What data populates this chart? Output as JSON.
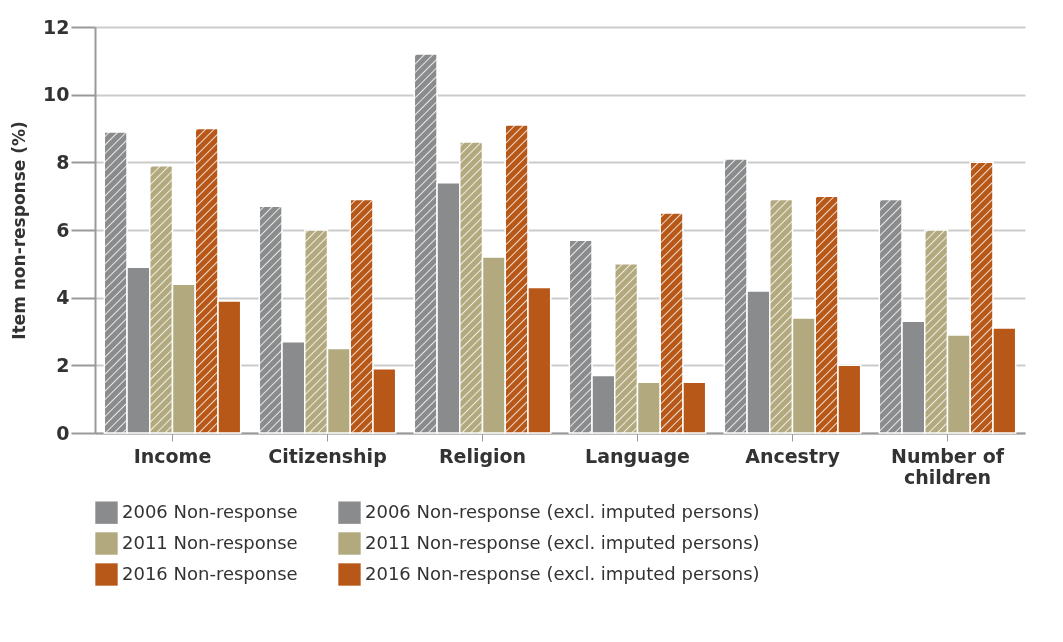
{
  "chart_data": {
    "type": "bar",
    "ylabel": "Item non-response (%)",
    "categories": [
      "Income",
      "Citizenship",
      "Religion",
      "Language",
      "Ancestry",
      "Number of children"
    ],
    "series": [
      {
        "name": "2006 Non-response",
        "color": "#8a8b8d",
        "values": [
          8.9,
          6.7,
          11.2,
          5.7,
          8.1,
          6.9
        ]
      },
      {
        "name": "2006 Non-response (excl. imputed persons)",
        "color": "#8a8b8d",
        "values": [
          4.9,
          2.7,
          7.4,
          1.7,
          4.2,
          3.3
        ]
      },
      {
        "name": "2011 Non-response",
        "color": "#b2a97e",
        "values": [
          7.9,
          6.0,
          8.6,
          5.0,
          6.9,
          6.0
        ]
      },
      {
        "name": "2011 Non-response (excl. imputed persons)",
        "color": "#b2a97e",
        "values": [
          4.4,
          2.5,
          5.2,
          1.5,
          3.4,
          2.9
        ]
      },
      {
        "name": "2016 Non-response",
        "color": "#b85818",
        "values": [
          9.0,
          6.9,
          9.1,
          6.5,
          7.0,
          8.0
        ]
      },
      {
        "name": "2016 Non-response (excl. imputed persons)",
        "color": "#b85818",
        "values": [
          3.9,
          1.9,
          4.3,
          1.5,
          2.0,
          3.1
        ]
      }
    ],
    "ylim": [
      0,
      12
    ],
    "yticks": [
      0,
      2,
      4,
      6,
      8,
      10,
      12
    ],
    "grid": "y",
    "legend": "bottom"
  }
}
